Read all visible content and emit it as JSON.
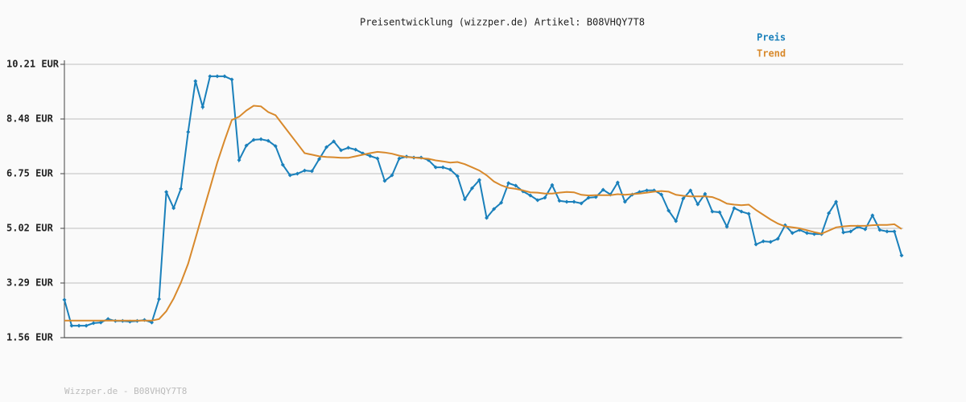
{
  "chart_data": {
    "type": "line",
    "title": "Preisentwicklung (wizzper.de) Artikel: B08VHQY7T8",
    "footer": "Wizzper.de - B08VHQY7T8",
    "legend": "top-right",
    "grid": true,
    "ylim": [
      1.56,
      10.21
    ],
    "yticks": [
      {
        "value": 1.56,
        "label": "1.56 EUR"
      },
      {
        "value": 3.29,
        "label": "3.29 EUR"
      },
      {
        "value": 5.02,
        "label": "5.02 EUR"
      },
      {
        "value": 6.75,
        "label": "6.75 EUR"
      },
      {
        "value": 8.48,
        "label": "8.48 EUR"
      },
      {
        "value": 10.21,
        "label": "10.21 EUR"
      }
    ],
    "series": [
      {
        "name": "Preis",
        "color": "#1a80bb",
        "markers": true,
        "values": [
          2.76,
          1.94,
          1.94,
          1.94,
          2.02,
          2.04,
          2.15,
          2.09,
          2.09,
          2.07,
          2.09,
          2.12,
          2.04,
          2.78,
          6.17,
          5.66,
          6.27,
          8.07,
          9.68,
          8.86,
          9.83,
          9.83,
          9.83,
          9.73,
          7.18,
          7.64,
          7.82,
          7.84,
          7.79,
          7.62,
          7.03,
          6.7,
          6.75,
          6.85,
          6.83,
          7.21,
          7.59,
          7.77,
          7.49,
          7.57,
          7.51,
          7.39,
          7.31,
          7.23,
          6.52,
          6.7,
          7.23,
          7.29,
          7.26,
          7.26,
          7.18,
          6.95,
          6.95,
          6.88,
          6.67,
          5.94,
          6.29,
          6.55,
          5.35,
          5.63,
          5.83,
          6.45,
          6.37,
          6.19,
          6.06,
          5.91,
          5.99,
          6.39,
          5.89,
          5.86,
          5.86,
          5.81,
          5.99,
          6.01,
          6.24,
          6.09,
          6.47,
          5.86,
          6.09,
          6.17,
          6.22,
          6.22,
          6.09,
          5.58,
          5.25,
          5.96,
          6.22,
          5.78,
          6.11,
          5.55,
          5.53,
          5.07,
          5.66,
          5.55,
          5.48,
          4.51,
          4.61,
          4.59,
          4.69,
          5.12,
          4.87,
          4.97,
          4.87,
          4.84,
          4.84,
          5.5,
          5.86,
          4.89,
          4.92,
          5.07,
          4.99,
          5.43,
          4.97,
          4.92,
          4.92,
          4.16
        ]
      },
      {
        "name": "Trend",
        "color": "#d8892c",
        "markers": false,
        "values": [
          2.1,
          2.1,
          2.1,
          2.1,
          2.1,
          2.1,
          2.1,
          2.1,
          2.1,
          2.1,
          2.1,
          2.1,
          2.1,
          2.15,
          2.4,
          2.8,
          3.3,
          3.9,
          4.7,
          5.5,
          6.3,
          7.1,
          7.8,
          8.45,
          8.55,
          8.75,
          8.9,
          8.88,
          8.7,
          8.6,
          8.3,
          8.0,
          7.7,
          7.4,
          7.35,
          7.3,
          7.28,
          7.27,
          7.25,
          7.25,
          7.3,
          7.35,
          7.4,
          7.44,
          7.42,
          7.38,
          7.32,
          7.28,
          7.26,
          7.24,
          7.22,
          7.17,
          7.14,
          7.1,
          7.12,
          7.05,
          6.95,
          6.85,
          6.7,
          6.5,
          6.38,
          6.3,
          6.27,
          6.22,
          6.16,
          6.15,
          6.12,
          6.12,
          6.15,
          6.17,
          6.16,
          6.08,
          6.06,
          6.07,
          6.07,
          6.07,
          6.1,
          6.08,
          6.1,
          6.12,
          6.15,
          6.18,
          6.2,
          6.18,
          6.08,
          6.05,
          6.03,
          6.03,
          6.03,
          6.01,
          5.92,
          5.8,
          5.77,
          5.75,
          5.77,
          5.6,
          5.45,
          5.3,
          5.17,
          5.08,
          5.05,
          5.02,
          4.96,
          4.9,
          4.85,
          4.95,
          5.05,
          5.08,
          5.1,
          5.1,
          5.1,
          5.12,
          5.13,
          5.13,
          5.15,
          5.0
        ]
      }
    ]
  }
}
